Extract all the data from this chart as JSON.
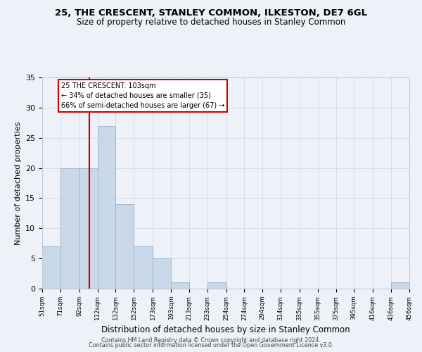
{
  "title": "25, THE CRESCENT, STANLEY COMMON, ILKESTON, DE7 6GL",
  "subtitle": "Size of property relative to detached houses in Stanley Common",
  "xlabel": "Distribution of detached houses by size in Stanley Common",
  "ylabel": "Number of detached properties",
  "bar_color": "#c8d8e8",
  "bar_edge_color": "#a0b8cc",
  "background_color": "#eef2f8",
  "grid_color": "#d0d8e8",
  "annotation_box_color": "#cc0000",
  "vline_color": "#cc0000",
  "vline_x": 103,
  "annotation_line1": "25 THE CRESCENT: 103sqm",
  "annotation_line2": "← 34% of detached houses are smaller (35)",
  "annotation_line3": "66% of semi-detached houses are larger (67) →",
  "footer_line1": "Contains HM Land Registry data © Crown copyright and database right 2024.",
  "footer_line2": "Contains public sector information licensed under the Open Government Licence v3.0.",
  "bins": [
    51,
    71,
    92,
    112,
    132,
    152,
    173,
    193,
    213,
    233,
    254,
    274,
    294,
    314,
    335,
    355,
    375,
    395,
    416,
    436,
    456
  ],
  "counts": [
    7,
    20,
    20,
    27,
    14,
    7,
    5,
    1,
    0,
    1,
    0,
    0,
    0,
    0,
    0,
    0,
    0,
    0,
    0,
    1
  ],
  "tick_labels": [
    "51sqm",
    "71sqm",
    "92sqm",
    "112sqm",
    "132sqm",
    "152sqm",
    "173sqm",
    "193sqm",
    "213sqm",
    "233sqm",
    "254sqm",
    "274sqm",
    "294sqm",
    "314sqm",
    "335sqm",
    "355sqm",
    "375sqm",
    "395sqm",
    "416sqm",
    "436sqm",
    "456sqm"
  ],
  "ylim": [
    0,
    35
  ],
  "yticks": [
    0,
    5,
    10,
    15,
    20,
    25,
    30,
    35
  ]
}
